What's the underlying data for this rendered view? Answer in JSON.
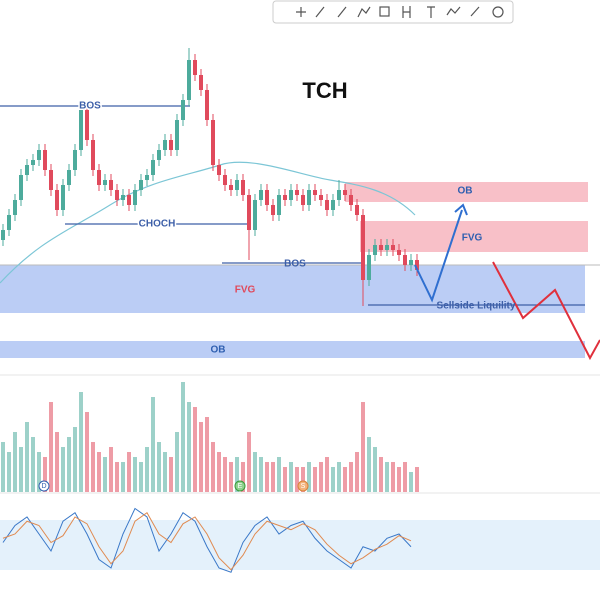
{
  "chart_data": {
    "type": "candlestick",
    "title": "TCH",
    "annotations": [
      "BOS",
      "CHOCH",
      "BOS",
      "FVG",
      "OB",
      "FVG",
      "OB",
      "Sellside Liquility"
    ],
    "events": [
      "D",
      "E",
      "S"
    ],
    "open": [
      130,
      140,
      155,
      170,
      195,
      205,
      210,
      220,
      200,
      180,
      160,
      185,
      200,
      220,
      260,
      230,
      200,
      185,
      190,
      180,
      170,
      175,
      165,
      180,
      190,
      195,
      210,
      220,
      230,
      220,
      250,
      270,
      310,
      295,
      280,
      250,
      205,
      195,
      185,
      180,
      190,
      175,
      140,
      170,
      180,
      165,
      155,
      175,
      170,
      180,
      175,
      165,
      180,
      175,
      170,
      160,
      170,
      180,
      175,
      165,
      155,
      90,
      115,
      125,
      120,
      125,
      120,
      115,
      105,
      110
    ],
    "close": [
      140,
      155,
      170,
      195,
      205,
      210,
      220,
      200,
      180,
      160,
      185,
      200,
      220,
      260,
      230,
      200,
      185,
      190,
      180,
      170,
      175,
      165,
      180,
      190,
      195,
      210,
      220,
      230,
      220,
      250,
      270,
      310,
      295,
      280,
      250,
      205,
      195,
      185,
      180,
      190,
      175,
      140,
      170,
      180,
      165,
      155,
      175,
      170,
      180,
      175,
      165,
      180,
      175,
      170,
      160,
      170,
      180,
      175,
      165,
      155,
      90,
      115,
      125,
      120,
      125,
      120,
      115,
      105,
      110,
      100
    ],
    "high": [
      146,
      161,
      176,
      201,
      211,
      216,
      226,
      226,
      206,
      186,
      191,
      206,
      226,
      266,
      266,
      236,
      206,
      196,
      196,
      186,
      181,
      181,
      186,
      196,
      201,
      216,
      226,
      236,
      236,
      256,
      276,
      322,
      316,
      301,
      286,
      256,
      211,
      201,
      191,
      196,
      196,
      181,
      176,
      186,
      186,
      171,
      181,
      181,
      186,
      186,
      181,
      186,
      186,
      181,
      176,
      176,
      190,
      186,
      181,
      171,
      161,
      121,
      131,
      131,
      131,
      131,
      126,
      121,
      116,
      116
    ],
    "low": [
      124,
      134,
      149,
      164,
      189,
      199,
      204,
      194,
      174,
      154,
      154,
      179,
      194,
      214,
      224,
      194,
      179,
      179,
      174,
      164,
      164,
      159,
      159,
      174,
      184,
      189,
      204,
      214,
      214,
      214,
      244,
      264,
      289,
      274,
      244,
      199,
      189,
      179,
      174,
      174,
      169,
      110,
      134,
      164,
      159,
      149,
      149,
      164,
      164,
      169,
      159,
      159,
      169,
      164,
      154,
      154,
      164,
      169,
      159,
      149,
      64,
      84,
      109,
      114,
      114,
      114,
      109,
      99,
      99,
      94
    ],
    "volume": [
      50,
      40,
      60,
      45,
      70,
      55,
      40,
      35,
      90,
      60,
      45,
      55,
      65,
      100,
      80,
      50,
      40,
      35,
      45,
      30,
      30,
      40,
      35,
      30,
      45,
      95,
      50,
      40,
      35,
      60,
      110,
      90,
      85,
      70,
      75,
      50,
      40,
      35,
      30,
      35,
      30,
      60,
      40,
      35,
      30,
      30,
      35,
      25,
      30,
      25,
      25,
      30,
      25,
      30,
      35,
      25,
      30,
      25,
      30,
      40,
      90,
      55,
      45,
      35,
      30,
      30,
      25,
      30,
      20,
      25
    ],
    "oscillator": [
      {
        "color": "#3a78c8",
        "values": [
          50,
          70,
          80,
          60,
          40,
          75,
          85,
          60,
          30,
          20,
          60,
          90,
          80,
          40,
          60,
          85,
          75,
          45,
          20,
          15,
          50,
          70,
          80,
          60,
          70,
          75,
          55,
          40,
          30,
          20,
          45,
          40,
          55,
          60,
          45
        ]
      },
      {
        "color": "#e08a50",
        "values": [
          55,
          60,
          75,
          70,
          50,
          58,
          80,
          72,
          45,
          25,
          40,
          75,
          85,
          60,
          50,
          72,
          80,
          60,
          32,
          18,
          35,
          60,
          75,
          70,
          65,
          72,
          65,
          48,
          35,
          25,
          32,
          42,
          48,
          58,
          52
        ]
      }
    ],
    "up_color": "#4dab9c",
    "down_color": "#e04a5c"
  }
}
